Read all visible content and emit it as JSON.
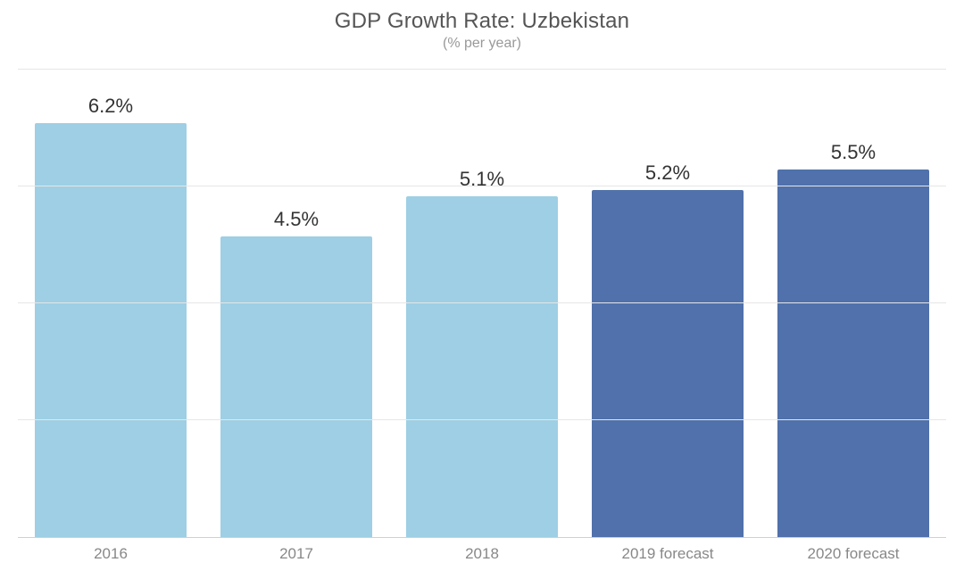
{
  "chart": {
    "type": "bar",
    "title": "GDP Growth Rate: Uzbekistan",
    "subtitle": "(% per year)",
    "title_fontsize": 24,
    "title_color": "#555555",
    "subtitle_fontsize": 16,
    "subtitle_color": "#999999",
    "background_color": "#ffffff",
    "grid_color": "#e6e6e6",
    "axis_line_color": "#d0d0d0",
    "categories": [
      "2016",
      "2017",
      "2018",
      "2019 forecast",
      "2020 forecast"
    ],
    "values": [
      6.2,
      4.5,
      5.1,
      5.2,
      5.5
    ],
    "value_labels": [
      "6.2%",
      "4.5%",
      "5.1%",
      "5.2%",
      "5.5%"
    ],
    "bar_colors": [
      "#9ecfe4",
      "#9ecfe4",
      "#9ecfe4",
      "#5071ab",
      "#5071ab"
    ],
    "value_label_color": "#333333",
    "value_label_fontsize": 22,
    "xaxis_label_color": "#888888",
    "xaxis_label_fontsize": 17,
    "ylim": [
      0,
      7
    ],
    "gridline_values": [
      1.75,
      3.5,
      5.25,
      7
    ],
    "bar_width_pct": 82
  }
}
